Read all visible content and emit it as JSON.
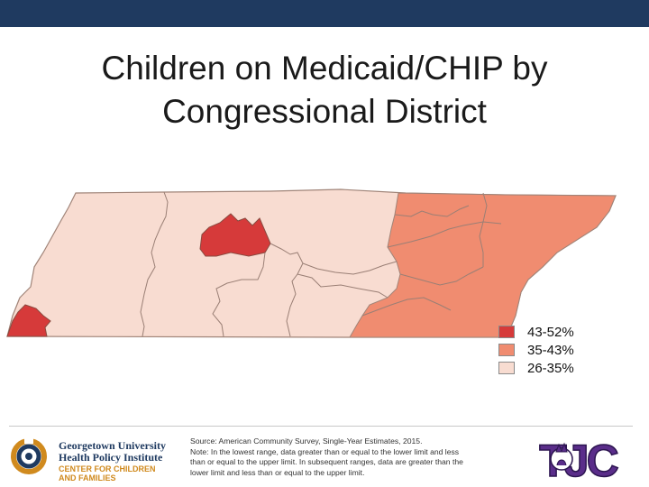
{
  "title": {
    "line1": "Children on Medicaid/CHIP by",
    "line2": "Congressional District"
  },
  "legend": [
    {
      "label": "43-52%",
      "color": "#d63a3a"
    },
    {
      "label": "35-43%",
      "color": "#f08c70"
    },
    {
      "label": "26-35%",
      "color": "#f8dcd1"
    }
  ],
  "colors": {
    "topbar": "#1f3a60",
    "district_border": "#9a7f75",
    "state_border": "#a08478"
  },
  "footer": {
    "org_line1": "Georgetown University",
    "org_line2": "Health Policy Institute",
    "org_line3": "CENTER FOR CHILDREN",
    "org_line4": "AND FAMILIES",
    "source_line1": "Source: American Community Survey, Single-Year Estimates, 2015.",
    "source_line2": "Note: In the lowest range, data greater than or equal to the lower limit and less",
    "source_line3": "than or equal to the upper limit. In subsequent ranges, data are greater than the",
    "source_line4": "lower limit and less than or equal to the upper limit.",
    "right_logo_text": "TJC",
    "right_logo_icon": "liberty-torch-emblem"
  }
}
